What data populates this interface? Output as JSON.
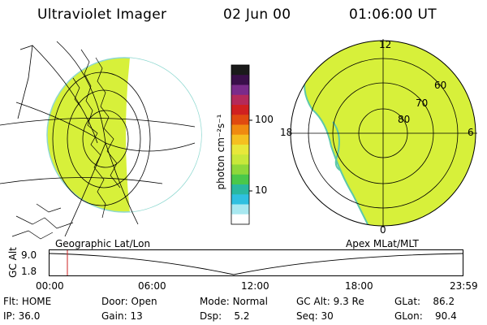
{
  "header": {
    "instrument": "Ultraviolet Imager",
    "date": "02 Jun 00",
    "time": "01:06:00 UT"
  },
  "colorbar": {
    "unit_label": "photon cm⁻²s⁻¹",
    "ticks": [
      "100",
      "10"
    ],
    "colors": [
      "#1a1a1a",
      "#3a0f4a",
      "#7a2b8a",
      "#b42a5a",
      "#d02020",
      "#e04a10",
      "#f08a10",
      "#f5c020",
      "#e8e83a",
      "#c8e83a",
      "#8ed83a",
      "#4ac84a",
      "#2ab8a0",
      "#30c0e0",
      "#a8e8f0",
      "#ffffff"
    ]
  },
  "left_map": {
    "caption": "Geographic Lat/Lon",
    "fill_color": "#d7f03a"
  },
  "right_map": {
    "caption": "Apex MLat/MLT",
    "fill_color": "#d7f03a",
    "lat_labels": [
      "60",
      "70",
      "80"
    ],
    "mlt_labels": {
      "top": "12",
      "left": "18",
      "right": "6",
      "bottom": "0"
    }
  },
  "timeline": {
    "axis_label": "GC Alt",
    "y_ticks": [
      "9.0",
      "1.8"
    ],
    "x_ticks": [
      "00:00",
      "06:00",
      "12:00",
      "18:00",
      "23:59"
    ],
    "marker_color": "#cc2222"
  },
  "status": {
    "flt_label": "Flt:",
    "flt_value": "HOME",
    "ip_label": "IP:",
    "ip_value": "36.0",
    "door_label": "Door:",
    "door_value": "Open",
    "gain_label": "Gain:",
    "gain_value": "13",
    "mode_label": "Mode:",
    "mode_value": "Normal",
    "dsp_label": "Dsp:",
    "dsp_value": "5.2",
    "gcalt_label": "GC Alt:",
    "gcalt_value": "9.3 Re",
    "seq_label": "Seq:",
    "seq_value": "30",
    "glat_label": "GLat:",
    "glat_value": "86.2",
    "glon_label": "GLon:",
    "glon_value": "90.4"
  }
}
